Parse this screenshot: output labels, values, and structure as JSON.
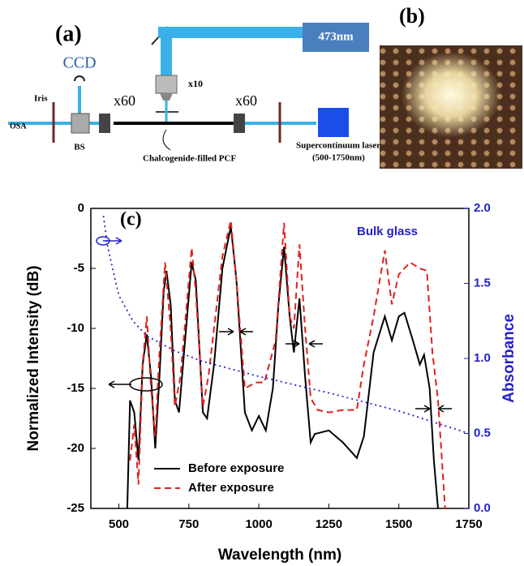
{
  "diagram": {
    "label": "(a)",
    "ccd": "CCD",
    "iris": "Iris",
    "osa": "OSA",
    "bs": "BS",
    "objective_left": "x60",
    "objective_right": "x60",
    "objective_top": "x10",
    "pump": "473nm",
    "fiber": "Chalcogenide-filled PCF",
    "source": "Supercontinuum laser",
    "source_range": "(500-1750nm)"
  },
  "photo": {
    "label": "(b)"
  },
  "chart_data": {
    "type": "line",
    "panel_label": "(c)",
    "x_label": "Wavelength (nm)",
    "y_label": "Normalized Intensity (dB)",
    "y2_label": "Absorbance",
    "xlim": [
      400,
      1750
    ],
    "xticks": [
      500,
      750,
      1000,
      1250,
      1500,
      1750
    ],
    "ylim": [
      -25,
      0
    ],
    "yticks": [
      0,
      -5,
      -10,
      -15,
      -20,
      -25
    ],
    "y2lim": [
      0,
      2
    ],
    "y2ticks": [
      {
        "value": 0,
        "label": "0.0"
      },
      0.5,
      {
        "value": 1,
        "label": "1.0"
      },
      1.5,
      {
        "value": 2,
        "label": "2.0"
      }
    ],
    "series": [
      {
        "name": "Before exposure",
        "color": "#000000",
        "dash": "solid",
        "x": [
          530,
          540,
          555,
          570,
          585,
          600,
          615,
          630,
          645,
          660,
          670,
          685,
          700,
          715,
          740,
          760,
          775,
          800,
          815,
          840,
          870,
          900,
          920,
          950,
          975,
          1000,
          1025,
          1050,
          1070,
          1090,
          1110,
          1125,
          1145,
          1165,
          1185,
          1200,
          1250,
          1300,
          1350,
          1375,
          1410,
          1450,
          1475,
          1500,
          1520,
          1550,
          1575,
          1590,
          1610,
          1625,
          1640
        ],
        "values": [
          -25,
          -16,
          -17,
          -21,
          -13,
          -10.5,
          -14,
          -20,
          -14,
          -7,
          -5.2,
          -8,
          -16,
          -17,
          -10,
          -4.5,
          -6,
          -17,
          -17.5,
          -13,
          -5,
          -1.5,
          -6,
          -17,
          -18.5,
          -17.3,
          -18.5,
          -15,
          -8,
          -3.2,
          -9,
          -12,
          -7.5,
          -14,
          -19.5,
          -18.8,
          -18.5,
          -19.5,
          -20.8,
          -19,
          -12,
          -9,
          -11,
          -9,
          -8.7,
          -11,
          -13,
          -12.2,
          -15,
          -21,
          -25
        ]
      },
      {
        "name": "After exposure",
        "color": "#e02020",
        "dash": "dashed",
        "x": [
          540,
          555,
          570,
          585,
          600,
          615,
          630,
          645,
          665,
          685,
          700,
          720,
          760,
          775,
          800,
          820,
          870,
          900,
          920,
          950,
          990,
          1020,
          1060,
          1090,
          1110,
          1125,
          1145,
          1165,
          1185,
          1210,
          1250,
          1300,
          1350,
          1375,
          1410,
          1450,
          1475,
          1500,
          1540,
          1575,
          1600,
          1620,
          1640,
          1665
        ],
        "values": [
          -21,
          -18,
          -23,
          -13,
          -9,
          -15,
          -19,
          -12,
          -4.5,
          -10,
          -16.5,
          -14,
          -3.3,
          -7,
          -16.5,
          -14,
          -4,
          -1,
          -6,
          -15,
          -14.5,
          -14.5,
          -11,
          -1.2,
          -9,
          -10,
          -3,
          -10,
          -15.8,
          -16.8,
          -17,
          -16.8,
          -16.8,
          -13,
          -9,
          -3.5,
          -8,
          -5.5,
          -4.5,
          -5,
          -5.2,
          -12,
          -16,
          -25
        ]
      },
      {
        "name": "Bulk glass",
        "color": "#2222cc",
        "dash": "dotted",
        "axis": "y2",
        "x": [
          445,
          460,
          480,
          500,
          550,
          600,
          700,
          800,
          1000,
          1250,
          1500,
          1750
        ],
        "values": [
          1.95,
          1.75,
          1.58,
          1.42,
          1.25,
          1.15,
          1.05,
          0.98,
          0.88,
          0.77,
          0.65,
          0.5
        ]
      }
    ]
  }
}
